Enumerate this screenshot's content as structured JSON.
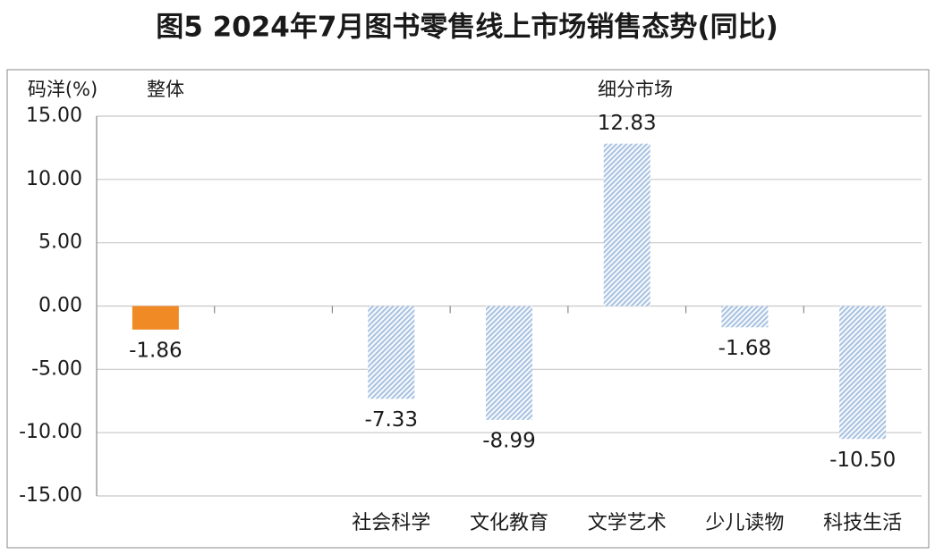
{
  "chart_data": {
    "type": "bar",
    "title": "图5 2024年7月图书零售线上市场销售态势(同比)",
    "y_label": "码洋(%)",
    "annotations": [
      "整体",
      "细分市场"
    ],
    "categories": [
      null,
      null,
      "社会科学",
      "文化教育",
      "文学艺术",
      "少儿读物",
      "科技生活"
    ],
    "values": [
      -1.86,
      null,
      -7.33,
      -8.99,
      12.83,
      -1.68,
      -10.5
    ],
    "value_labels": [
      "-1.86",
      null,
      "-7.33",
      "-8.99",
      "12.83",
      "-1.68",
      "-10.50"
    ],
    "colors": [
      "#f08a24",
      null,
      "#a9c3e2",
      "#a9c3e2",
      "#a9c3e2",
      "#a9c3e2",
      "#a9c3e2"
    ],
    "hatch": [
      false,
      null,
      true,
      true,
      true,
      true,
      true
    ],
    "ylim": [
      -15,
      15
    ],
    "yticks": [
      {
        "value": -15,
        "label": "-15.00"
      },
      {
        "value": -10,
        "label": "-10.00"
      },
      {
        "value": -5,
        "label": "-5.00"
      },
      {
        "value": 0,
        "label": "0.00"
      },
      {
        "value": 5,
        "label": "5.00"
      },
      {
        "value": 10,
        "label": "10.00"
      },
      {
        "value": 15,
        "label": "15.00"
      }
    ],
    "grid": true
  }
}
